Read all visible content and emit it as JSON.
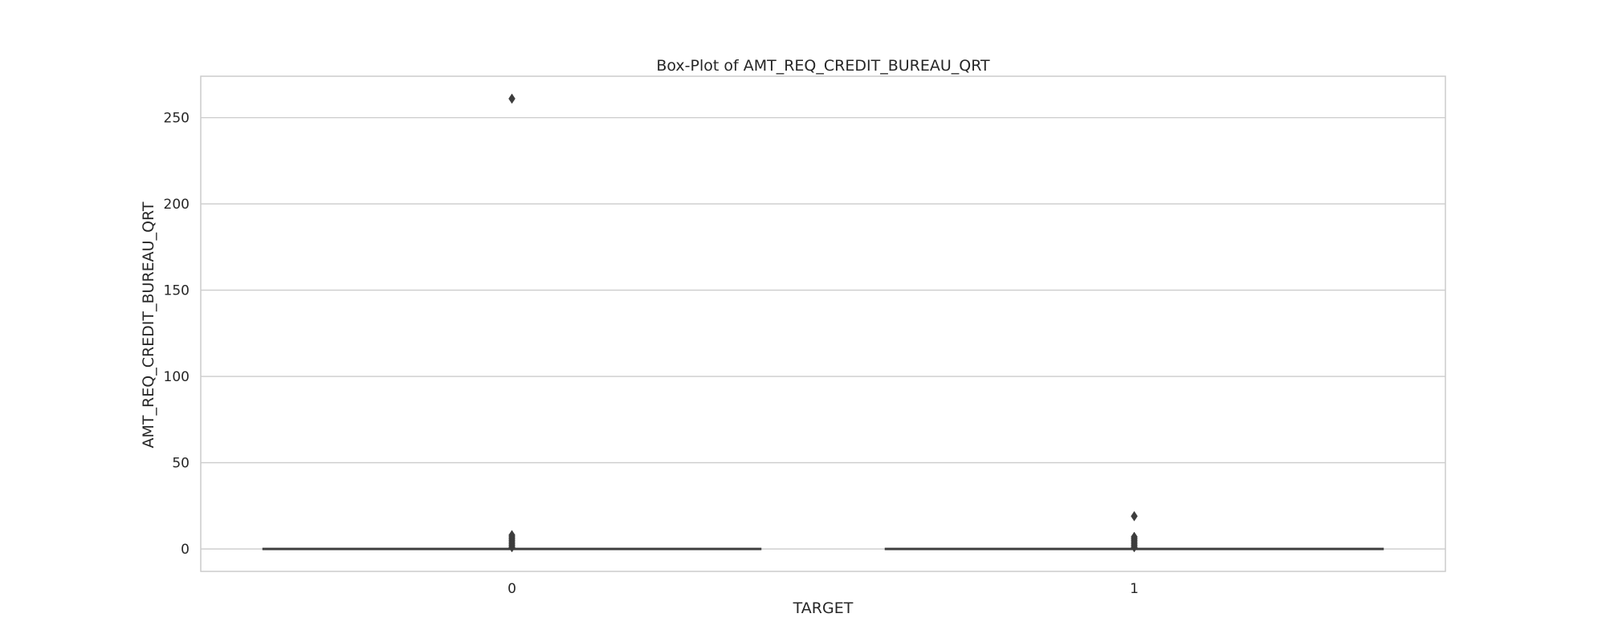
{
  "chart_data": {
    "type": "box",
    "title": "Box-Plot of AMT_REQ_CREDIT_BUREAU_QRT",
    "xlabel": "TARGET",
    "ylabel": "AMT_REQ_CREDIT_BUREAU_QRT",
    "categories": [
      "0",
      "1"
    ],
    "ylim": [
      -13,
      274
    ],
    "yticks": [
      0,
      50,
      100,
      150,
      200,
      250
    ],
    "grid": true,
    "boxes": [
      {
        "category": "0",
        "min": 0,
        "q1": 0,
        "median": 0,
        "q3": 0,
        "max": 0,
        "outliers": [
          1,
          2,
          3,
          4,
          5,
          6,
          7,
          8,
          261
        ]
      },
      {
        "category": "1",
        "min": 0,
        "q1": 0,
        "median": 0,
        "q3": 0,
        "max": 0,
        "outliers": [
          1,
          2,
          3,
          4,
          5,
          6,
          7,
          19
        ]
      }
    ],
    "colors": {
      "box_line": "#3d3d3d",
      "grid": "#cccccc",
      "frame": "#cccccc",
      "text": "#262626"
    }
  }
}
